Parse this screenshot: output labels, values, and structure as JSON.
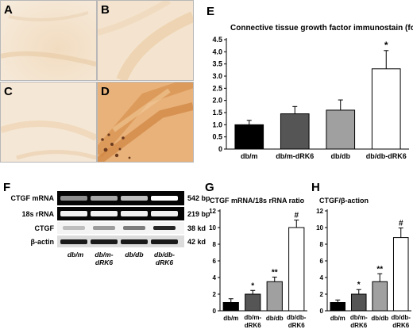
{
  "panels": {
    "a": "A",
    "b": "B",
    "c": "C",
    "d": "D",
    "e": "E",
    "f": "F",
    "g": "G",
    "h": "H"
  },
  "gel": {
    "rows": [
      {
        "label": "CTGF mRNA",
        "size": "542 bp"
      },
      {
        "label": "18s rRNA",
        "size": "219 bp"
      },
      {
        "label": "CTGF",
        "size": "38 kd"
      },
      {
        "label": "β-actin",
        "size": "42 kd"
      }
    ],
    "lanes": [
      {
        "line1": "db/m",
        "line2": ""
      },
      {
        "line1": "db/m-",
        "line2": "dRK6"
      },
      {
        "line1": "db/db",
        "line2": ""
      },
      {
        "line1": "db/db-",
        "line2": "dRK6"
      }
    ]
  },
  "colors": {
    "db_m": "#000000",
    "db_m_dRK6": "#555555",
    "db_db": "#a0a0a0",
    "db_db_dRK6": "#ffffff"
  },
  "chart_data": [
    {
      "id": "E",
      "type": "bar",
      "title": "Connective tissue growth factor immunostain (folds)",
      "categories": [
        "db/m",
        "db/m-dRK6",
        "db/db",
        "db/db-dRK6"
      ],
      "values": [
        1.0,
        1.45,
        1.6,
        3.3
      ],
      "errors": [
        0.18,
        0.3,
        0.42,
        0.75
      ],
      "annotations": [
        "",
        "",
        "",
        "*"
      ],
      "ylim": [
        0,
        4.5
      ],
      "yticks": [
        "0",
        "0.5",
        "1.0",
        "1.5",
        "2.0",
        "2.5",
        "3.0",
        "3.5",
        "4.0",
        "4.5"
      ]
    },
    {
      "id": "G",
      "type": "bar",
      "title": "CTGF mRNA/18s rRNA ratio",
      "categories": [
        "db/m",
        "db/m-dRK6",
        "db/db",
        "db/db-dRK6"
      ],
      "values": [
        1.0,
        2.0,
        3.5,
        10.0
      ],
      "errors": [
        0.45,
        0.45,
        0.55,
        0.9
      ],
      "annotations": [
        "",
        "*",
        "**",
        "#"
      ],
      "ylim": [
        0,
        12
      ],
      "yticks": [
        "0",
        "2",
        "4",
        "6",
        "8",
        "10",
        "12"
      ]
    },
    {
      "id": "H",
      "type": "bar",
      "title": "CTGF/β-action",
      "categories": [
        "db/m",
        "db/m-dRK6",
        "db/db",
        "db/db-dRK6"
      ],
      "values": [
        1.0,
        2.0,
        3.5,
        8.8
      ],
      "errors": [
        0.3,
        0.55,
        0.95,
        1.15
      ],
      "annotations": [
        "",
        "*",
        "**",
        "#"
      ],
      "ylim": [
        0,
        12
      ],
      "yticks": [
        "0",
        "2",
        "4",
        "6",
        "8",
        "10",
        "12"
      ]
    }
  ]
}
